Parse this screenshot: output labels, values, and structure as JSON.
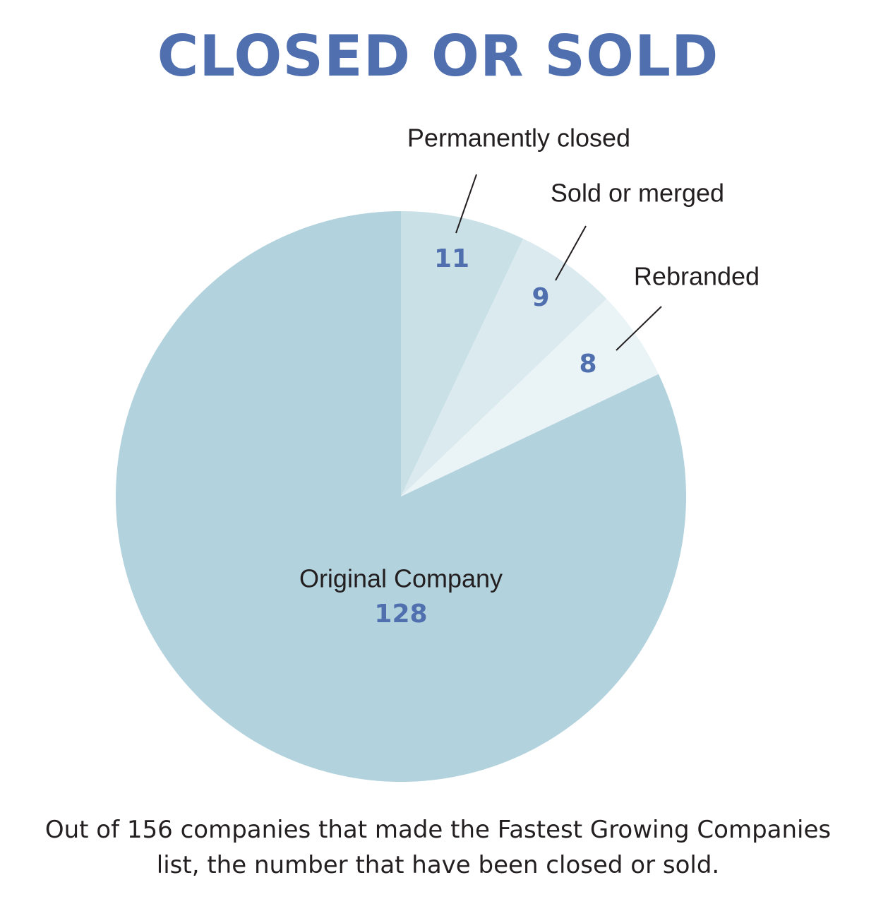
{
  "chart_data": {
    "type": "pie",
    "title": "CLOSED OR SOLD",
    "caption": "Out of 156 companies that made the Fastest Growing Companies list, the number that have been closed or sold.",
    "slices": [
      {
        "label": "Permanently closed",
        "value": 11,
        "color": "#c9e0e7"
      },
      {
        "label": "Sold or merged",
        "value": 9,
        "color": "#dbeaef"
      },
      {
        "label": "Rebranded",
        "value": 8,
        "color": "#eaf3f6"
      },
      {
        "label": "Original Company",
        "value": 128,
        "color": "#b2d2dd"
      }
    ],
    "total": 156,
    "start_angle": "12 o'clock",
    "direction": "clockwise",
    "value_color": "#4f6fae",
    "label_color": "#231f20",
    "legend": "none"
  }
}
